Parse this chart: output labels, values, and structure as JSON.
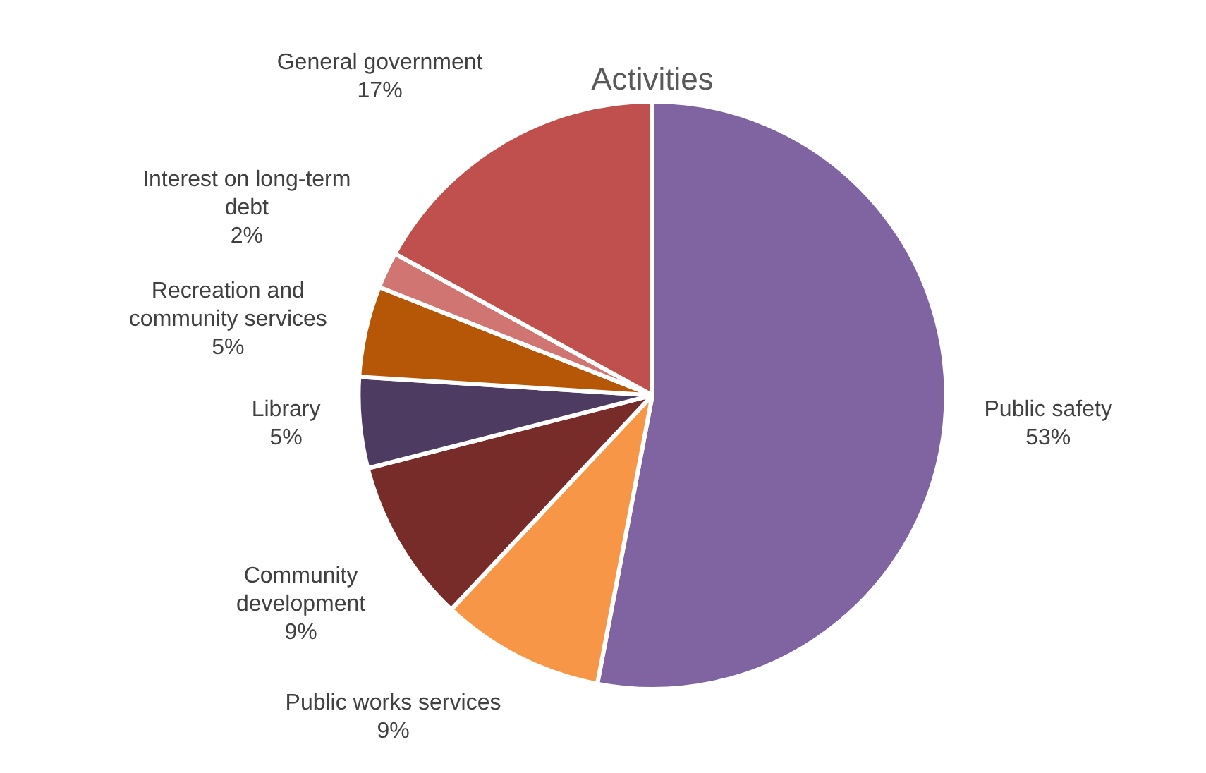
{
  "chart_data": {
    "type": "pie",
    "title": "Activities",
    "categories": [
      "Public safety",
      "Public works services",
      "Community development",
      "Library",
      "Recreation and community services",
      "Interest on long-term debt",
      "General government"
    ],
    "values": [
      53,
      9,
      9,
      5,
      5,
      2,
      17
    ],
    "colors": [
      "#8064a2",
      "#f79646",
      "#772c2a",
      "#4d3b62",
      "#b65708",
      "#d07572",
      "#c0504d"
    ],
    "value_labels": [
      "53%",
      "9%",
      "9%",
      "5%",
      "5%",
      "2%",
      "17%"
    ],
    "legend": false
  }
}
